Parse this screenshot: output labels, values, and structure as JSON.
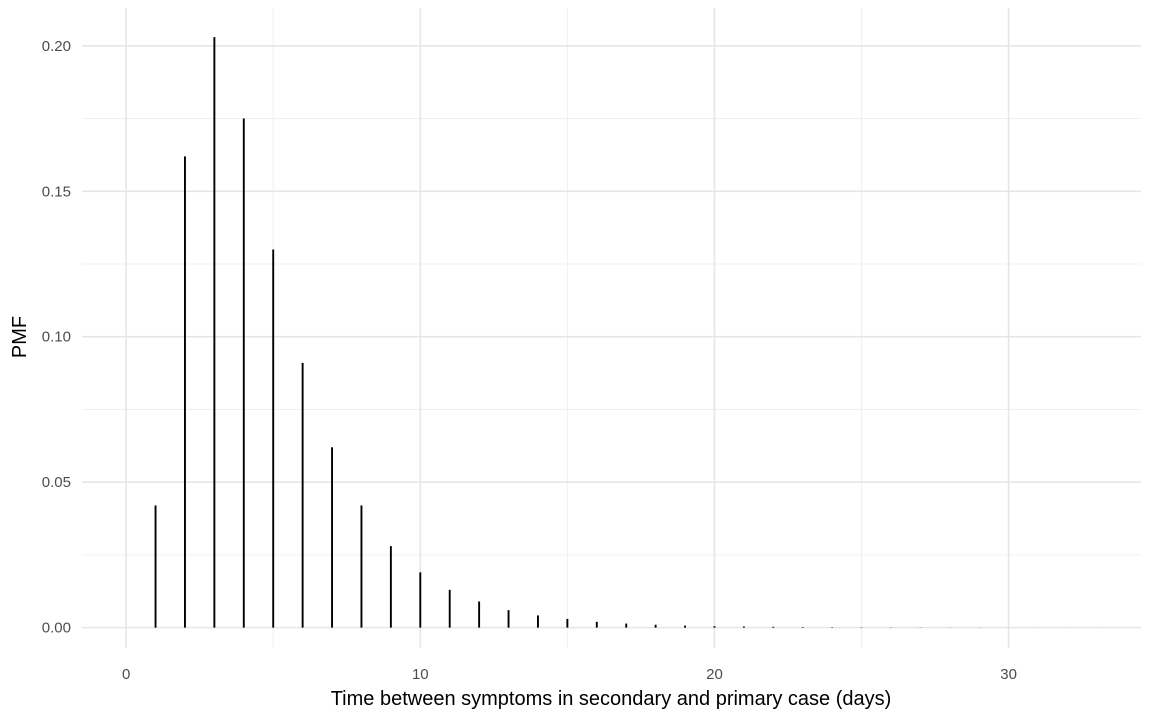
{
  "chart_data": {
    "type": "bar",
    "title": "",
    "xlabel": "Time between symptoms in secondary and primary case (days)",
    "ylabel": "PMF",
    "xlim": [
      -1.5,
      34.5
    ],
    "ylim": [
      -0.007,
      0.213
    ],
    "x_ticks": [
      0,
      10,
      20,
      30
    ],
    "x_tick_labels": [
      "0",
      "10",
      "20",
      "30"
    ],
    "y_ticks": [
      0,
      0.05,
      0.1,
      0.15,
      0.2
    ],
    "y_tick_labels": [
      "0.00",
      "0.05",
      "0.10",
      "0.15",
      "0.20"
    ],
    "grid": true,
    "legend": "none",
    "mark_color": "#000000",
    "x": [
      1,
      2,
      3,
      4,
      5,
      6,
      7,
      8,
      9,
      10,
      11,
      12,
      13,
      14,
      15,
      16,
      17,
      18,
      19,
      20,
      21,
      22,
      23,
      24,
      25,
      26,
      27,
      28,
      29,
      30,
      31,
      32,
      33
    ],
    "values": [
      0.042,
      0.162,
      0.203,
      0.175,
      0.13,
      0.091,
      0.062,
      0.042,
      0.028,
      0.019,
      0.013,
      0.009,
      0.006,
      0.0042,
      0.003,
      0.002,
      0.0014,
      0.001,
      0.0007,
      0.0005,
      0.0004,
      0.0003,
      0.0002,
      0.00015,
      0.0001,
      8e-05,
      6e-05,
      4e-05,
      3e-05,
      2e-05,
      1e-05,
      1e-05,
      1e-05
    ]
  }
}
